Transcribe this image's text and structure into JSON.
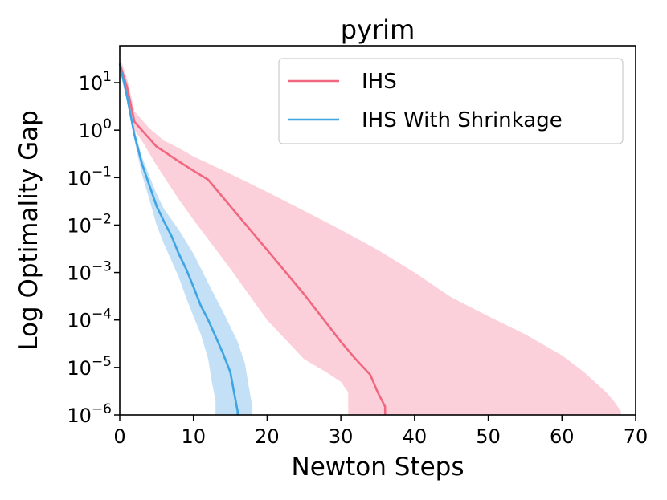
{
  "chart_data": {
    "type": "line",
    "title": "pyrim",
    "xlabel": "Newton Steps",
    "ylabel": "Log Optimality Gap",
    "xscale": "linear",
    "yscale": "log",
    "xlim": [
      0,
      70
    ],
    "ylim": [
      1e-06,
      60
    ],
    "x_ticks": [
      {
        "value": 0,
        "label": "0"
      },
      {
        "value": 10,
        "label": "10"
      },
      {
        "value": 20,
        "label": "20"
      },
      {
        "value": 30,
        "label": "30"
      },
      {
        "value": 40,
        "label": "40"
      },
      {
        "value": 50,
        "label": "50"
      },
      {
        "value": 60,
        "label": "60"
      },
      {
        "value": 70,
        "label": "70"
      }
    ],
    "y_ticks": [
      {
        "value": 10,
        "base": "10",
        "exp": "1"
      },
      {
        "value": 1,
        "base": "10",
        "exp": "0"
      },
      {
        "value": 0.1,
        "base": "10",
        "exp": "−1"
      },
      {
        "value": 0.01,
        "base": "10",
        "exp": "−2"
      },
      {
        "value": 0.001,
        "base": "10",
        "exp": "−3"
      },
      {
        "value": 0.0001,
        "base": "10",
        "exp": "−4"
      },
      {
        "value": 1e-05,
        "base": "10",
        "exp": "−5"
      },
      {
        "value": 1e-06,
        "base": "10",
        "exp": "−6"
      }
    ],
    "grid": false,
    "legend_position": "top-right",
    "series": [
      {
        "name": "IHS",
        "color": "#f0677f",
        "band_color": "#fcd0da",
        "line": [
          [
            0,
            25
          ],
          [
            1,
            8
          ],
          [
            2,
            1.5
          ],
          [
            3,
            1.0
          ],
          [
            5,
            0.45
          ],
          [
            8,
            0.22
          ],
          [
            10,
            0.14
          ],
          [
            12,
            0.09
          ],
          [
            15,
            0.025
          ],
          [
            20,
            0.003
          ],
          [
            25,
            0.00035
          ],
          [
            30,
            3.5e-05
          ],
          [
            32,
            1.5e-05
          ],
          [
            34,
            7e-06
          ],
          [
            35,
            3e-06
          ],
          [
            36,
            1.5e-06
          ],
          [
            36,
            1e-06
          ]
        ],
        "band_upper": [
          [
            0,
            35
          ],
          [
            1,
            12
          ],
          [
            2,
            2.5
          ],
          [
            4,
            1.1
          ],
          [
            6,
            0.6
          ],
          [
            8,
            0.42
          ],
          [
            10,
            0.28
          ],
          [
            12,
            0.2
          ],
          [
            15,
            0.12
          ],
          [
            20,
            0.05
          ],
          [
            25,
            0.02
          ],
          [
            30,
            0.008
          ],
          [
            35,
            0.003
          ],
          [
            40,
            0.001
          ],
          [
            45,
            0.0003
          ],
          [
            50,
            0.00012
          ],
          [
            55,
            5e-05
          ],
          [
            60,
            1.8e-05
          ],
          [
            63,
            8e-06
          ],
          [
            66,
            3e-06
          ],
          [
            67,
            2e-06
          ],
          [
            68,
            1.2e-06
          ],
          [
            68,
            1e-06
          ]
        ],
        "band_lower": [
          [
            0,
            18
          ],
          [
            1,
            5
          ],
          [
            2,
            1.0
          ],
          [
            3,
            0.6
          ],
          [
            5,
            0.18
          ],
          [
            8,
            0.035
          ],
          [
            10,
            0.013
          ],
          [
            12,
            0.005
          ],
          [
            15,
            0.0012
          ],
          [
            20,
            0.0001
          ],
          [
            25,
            1.5e-05
          ],
          [
            28,
            8e-06
          ],
          [
            30,
            5e-06
          ],
          [
            31,
            3e-06
          ],
          [
            31,
            1e-06
          ]
        ]
      },
      {
        "name": "IHS With Shrinkage",
        "color": "#3fa4e2",
        "band_color": "#c3e0f6",
        "line": [
          [
            0,
            25
          ],
          [
            1,
            5
          ],
          [
            2,
            0.8
          ],
          [
            3,
            0.2
          ],
          [
            4,
            0.07
          ],
          [
            5,
            0.025
          ],
          [
            6,
            0.012
          ],
          [
            7,
            0.006
          ],
          [
            8,
            0.0025
          ],
          [
            9,
            0.0012
          ],
          [
            10,
            0.0005
          ],
          [
            11,
            0.0002
          ],
          [
            12,
            0.0001
          ],
          [
            13,
            4.5e-05
          ],
          [
            14,
            2e-05
          ],
          [
            15,
            8e-06
          ],
          [
            15.5,
            3e-06
          ],
          [
            16,
            1.2e-06
          ],
          [
            16,
            1e-06
          ]
        ],
        "band_upper": [
          [
            0,
            30
          ],
          [
            1,
            6
          ],
          [
            2,
            1.0
          ],
          [
            3,
            0.28
          ],
          [
            4,
            0.11
          ],
          [
            5,
            0.045
          ],
          [
            6,
            0.022
          ],
          [
            8,
            0.008
          ],
          [
            10,
            0.0025
          ],
          [
            12,
            0.0006
          ],
          [
            14,
            0.00015
          ],
          [
            16,
            3.5e-05
          ],
          [
            17,
            1.2e-05
          ],
          [
            17.5,
            4e-06
          ],
          [
            18,
            1.5e-06
          ],
          [
            18,
            1e-06
          ]
        ],
        "band_lower": [
          [
            0,
            20
          ],
          [
            1,
            4
          ],
          [
            2,
            0.6
          ],
          [
            3,
            0.12
          ],
          [
            4,
            0.035
          ],
          [
            5,
            0.01
          ],
          [
            6,
            0.004
          ],
          [
            7,
            0.0018
          ],
          [
            8,
            0.0008
          ],
          [
            9,
            0.0003
          ],
          [
            10,
            0.00012
          ],
          [
            11,
            5e-05
          ],
          [
            12,
            1.5e-05
          ],
          [
            12.5,
            5e-06
          ],
          [
            13,
            2e-06
          ],
          [
            13,
            1e-06
          ]
        ]
      }
    ]
  }
}
